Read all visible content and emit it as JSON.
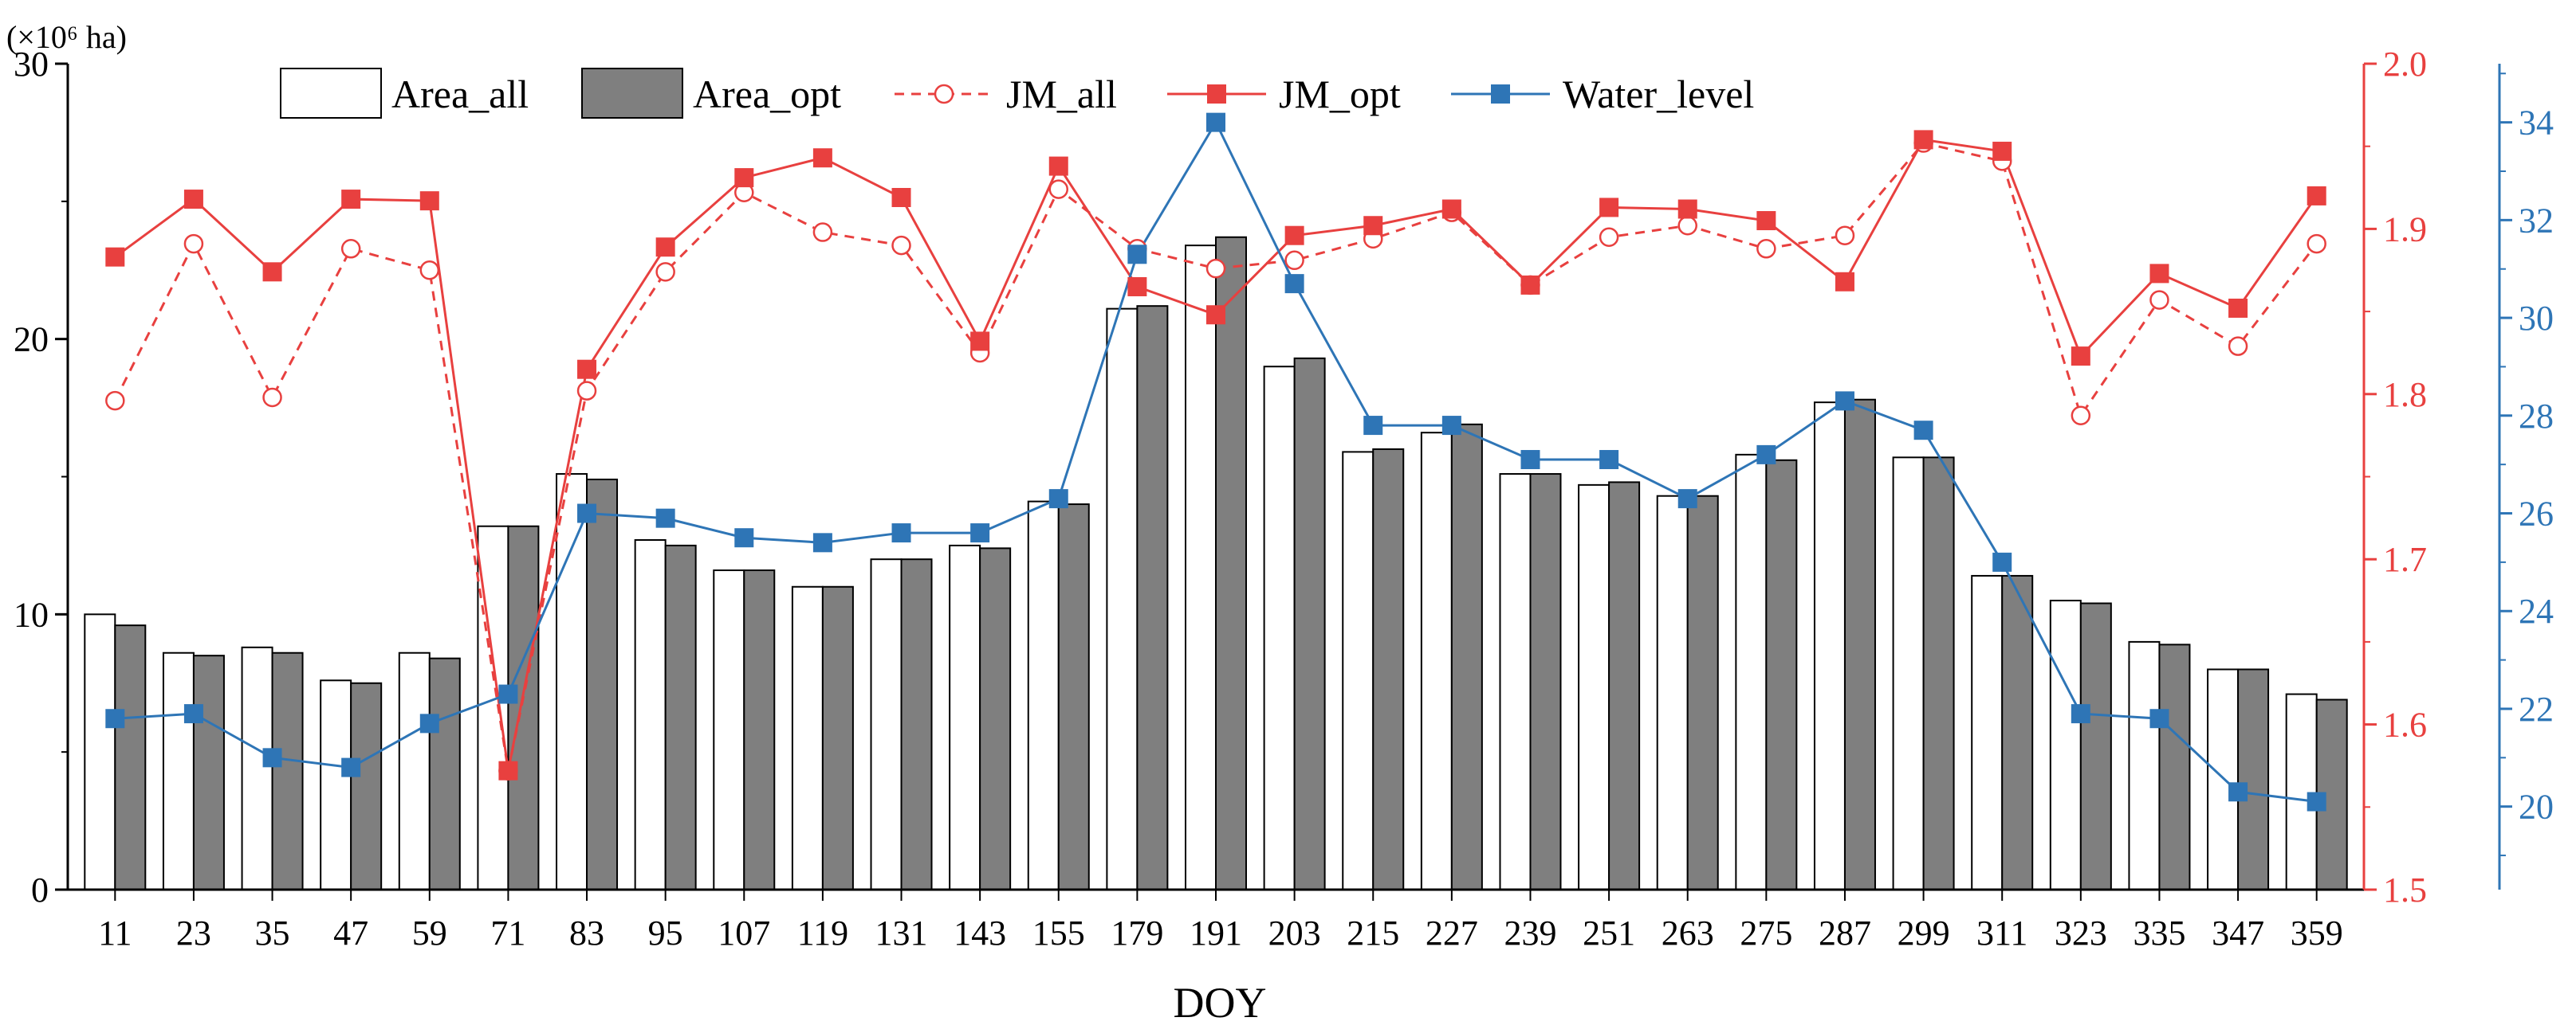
{
  "chart_data": {
    "type": "bar+line",
    "xlabel": "DOY",
    "unit_label": "(×10⁶ ha)",
    "categories": [
      "11",
      "23",
      "35",
      "47",
      "59",
      "71",
      "83",
      "95",
      "107",
      "119",
      "131",
      "143",
      "155",
      "179",
      "191",
      "203",
      "215",
      "227",
      "239",
      "251",
      "263",
      "275",
      "287",
      "299",
      "311",
      "323",
      "335",
      "347",
      "359"
    ],
    "left_axis": {
      "ylim": [
        0,
        30
      ],
      "ticks": [
        0,
        10,
        20,
        30
      ],
      "color": "#000000"
    },
    "right_axis_jm": {
      "ylim": [
        1.5,
        2.0
      ],
      "ticks": [
        "1.5",
        "1.6",
        "1.7",
        "1.8",
        "1.9",
        "2.0"
      ],
      "color": "#e8403f"
    },
    "right_axis_water": {
      "ylim": [
        18.3,
        35.2
      ],
      "ticks": [
        20,
        22,
        24,
        26,
        28,
        30,
        32,
        34
      ],
      "color": "#2e75b6"
    },
    "series": [
      {
        "name": "Area_all",
        "type": "bar",
        "axis": "left",
        "color": "#ffffff",
        "values": [
          10.0,
          8.6,
          8.8,
          7.6,
          8.6,
          13.2,
          15.1,
          12.7,
          11.6,
          11.0,
          12.0,
          12.5,
          14.1,
          21.1,
          23.4,
          19.0,
          15.9,
          16.6,
          15.1,
          14.7,
          14.3,
          15.8,
          17.7,
          15.7,
          11.4,
          10.5,
          9.0,
          8.0,
          7.1
        ]
      },
      {
        "name": "Area_opt",
        "type": "bar",
        "axis": "left",
        "color": "#7f7f7f",
        "values": [
          9.6,
          8.5,
          8.6,
          7.5,
          8.4,
          13.2,
          14.9,
          12.5,
          11.6,
          11.0,
          12.0,
          12.4,
          14.0,
          21.2,
          23.7,
          19.3,
          16.0,
          16.9,
          15.1,
          14.8,
          14.3,
          15.6,
          17.8,
          15.7,
          11.4,
          10.4,
          8.9,
          8.0,
          6.9
        ]
      },
      {
        "name": "JM_all",
        "type": "line",
        "axis": "right_jm",
        "color": "#e8403f",
        "values": [
          1.796,
          1.891,
          1.798,
          1.888,
          1.875,
          1.572,
          1.802,
          1.874,
          1.922,
          1.898,
          1.89,
          1.825,
          1.924,
          1.888,
          1.876,
          1.881,
          1.894,
          1.91,
          1.866,
          1.895,
          1.902,
          1.888,
          1.896,
          1.952,
          1.941,
          1.787,
          1.857,
          1.829,
          1.891
        ]
      },
      {
        "name": "JM_opt",
        "type": "line",
        "axis": "right_jm",
        "color": "#e8403f",
        "values": [
          1.883,
          1.918,
          1.874,
          1.918,
          1.917,
          1.572,
          1.815,
          1.889,
          1.931,
          1.943,
          1.919,
          1.832,
          1.938,
          1.865,
          1.848,
          1.896,
          1.902,
          1.912,
          1.866,
          1.913,
          1.912,
          1.905,
          1.868,
          1.954,
          1.947,
          1.823,
          1.873,
          1.852,
          1.92
        ]
      },
      {
        "name": "Water_level",
        "type": "line",
        "axis": "right_water",
        "color": "#2e75b6",
        "values": [
          21.8,
          21.9,
          21.0,
          20.8,
          21.7,
          22.3,
          26.0,
          25.9,
          25.5,
          25.4,
          25.6,
          25.6,
          26.3,
          31.3,
          34.0,
          30.7,
          27.8,
          27.8,
          27.1,
          27.1,
          26.3,
          27.2,
          28.3,
          27.7,
          25.0,
          21.9,
          21.8,
          20.3,
          20.1
        ]
      }
    ],
    "legend": {
      "position": "top",
      "entries": [
        "Area_all",
        "Area_opt",
        "JM_all",
        "JM_opt",
        "Water_level"
      ]
    }
  }
}
